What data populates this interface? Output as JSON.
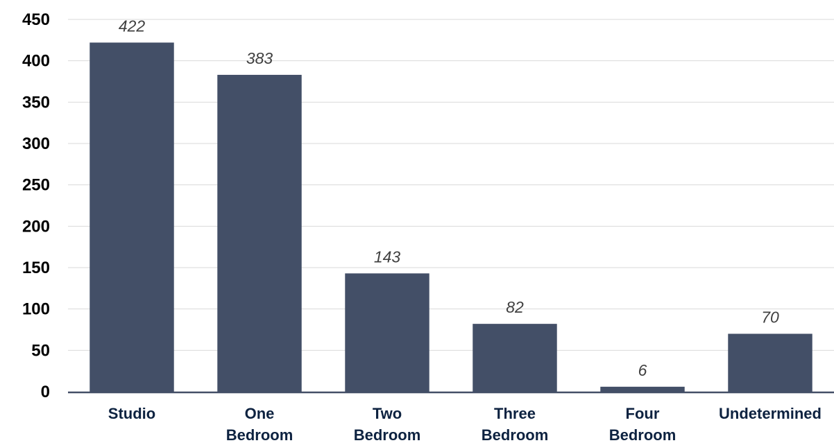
{
  "chart_data": {
    "type": "bar",
    "categories": [
      "Studio",
      "One Bedroom",
      "Two Bedroom",
      "Three Bedroom",
      "Four Bedroom",
      "Undetermined"
    ],
    "category_lines": [
      [
        "Studio"
      ],
      [
        "One",
        "Bedroom"
      ],
      [
        "Two",
        "Bedroom"
      ],
      [
        "Three",
        "Bedroom"
      ],
      [
        "Four",
        "Bedroom"
      ],
      [
        "Undetermined"
      ]
    ],
    "values": [
      422,
      383,
      143,
      82,
      6,
      70
    ],
    "data_labels": [
      "422",
      "383",
      "143",
      "82",
      "6",
      "70"
    ],
    "ylim": [
      0,
      450
    ],
    "yticks": [
      0,
      50,
      100,
      150,
      200,
      250,
      300,
      350,
      400,
      450
    ],
    "grid": true,
    "legend": "none",
    "bar_color": "#434f67",
    "grid_color": "#d9d9d9",
    "axis_color": "#434f67"
  }
}
